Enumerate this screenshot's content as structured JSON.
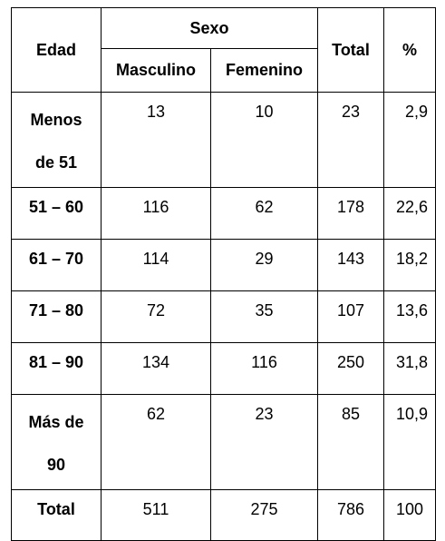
{
  "table": {
    "header": {
      "edad": "Edad",
      "sexo": "Sexo",
      "masculino": "Masculino",
      "femenino": "Femenino",
      "total": "Total",
      "percent": "%"
    },
    "rows": [
      {
        "edad_line1": "Menos",
        "edad_line2": "de 51",
        "masculino": "13",
        "femenino": "10",
        "total": "23",
        "percent": "2,9"
      },
      {
        "edad": "51 – 60",
        "masculino": "116",
        "femenino": "62",
        "total": "178",
        "percent": "22,6"
      },
      {
        "edad": "61 – 70",
        "masculino": "114",
        "femenino": "29",
        "total": "143",
        "percent": "18,2"
      },
      {
        "edad": "71 – 80",
        "masculino": "72",
        "femenino": "35",
        "total": "107",
        "percent": "13,6"
      },
      {
        "edad": "81 – 90",
        "masculino": "134",
        "femenino": "116",
        "total": "250",
        "percent": "31,8"
      },
      {
        "edad_line1": "Más de",
        "edad_line2": "90",
        "masculino": "62",
        "femenino": "23",
        "total": "85",
        "percent": "10,9"
      }
    ],
    "total_row": {
      "label": "Total",
      "masculino": "511",
      "femenino": "275",
      "total": "786",
      "percent": "100"
    }
  }
}
